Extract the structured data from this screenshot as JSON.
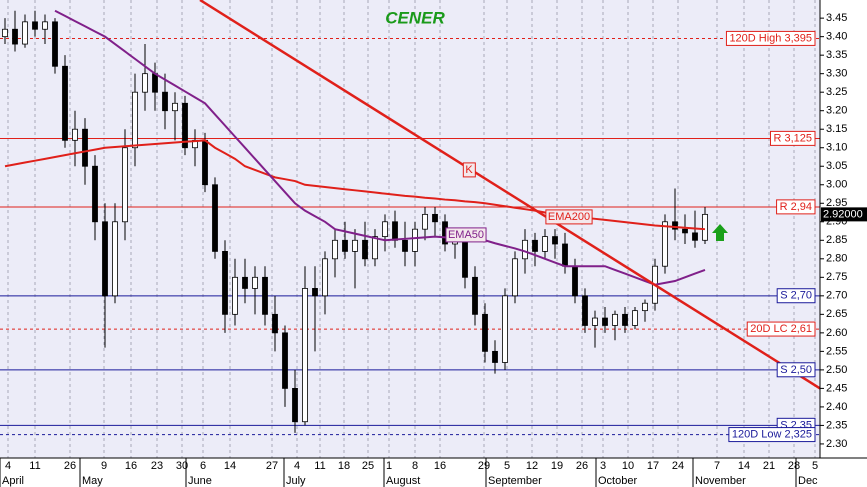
{
  "chart_data": {
    "type": "candlestick",
    "title": "CENER",
    "title_color": "#1a9a1a",
    "ylim": [
      2.262,
      3.499
    ],
    "yticks": [
      {
        "value": 2.3,
        "label": "2.30"
      },
      {
        "value": 2.35,
        "label": "2.35"
      },
      {
        "value": 2.4,
        "label": "2.40"
      },
      {
        "value": 2.45,
        "label": "2.45"
      },
      {
        "value": 2.5,
        "label": "2.50"
      },
      {
        "value": 2.55,
        "label": "2.55"
      },
      {
        "value": 2.6,
        "label": "2.60"
      },
      {
        "value": 2.65,
        "label": "2.65"
      },
      {
        "value": 2.7,
        "label": "2.70"
      },
      {
        "value": 2.75,
        "label": "2.75"
      },
      {
        "value": 2.8,
        "label": "2.80"
      },
      {
        "value": 2.85,
        "label": "2.85"
      },
      {
        "value": 2.9,
        "label": "2.90"
      },
      {
        "value": 2.95,
        "label": "2.95"
      },
      {
        "value": 3,
        "label": "3.00"
      },
      {
        "value": 3.05,
        "label": "3.05"
      },
      {
        "value": 3.1,
        "label": "3.10"
      },
      {
        "value": 3.15,
        "label": "3.15"
      },
      {
        "value": 3.2,
        "label": "3.20"
      },
      {
        "value": 3.25,
        "label": "3.25"
      },
      {
        "value": 3.3,
        "label": "3.30"
      },
      {
        "value": 3.35,
        "label": "3.35"
      },
      {
        "value": 3.4,
        "label": "3.40"
      },
      {
        "value": 3.45,
        "label": "3.45"
      }
    ],
    "xticks": [
      "4",
      "11",
      "26",
      "9",
      "16",
      "23",
      "30",
      "6",
      "14",
      "27",
      "4",
      "11",
      "18",
      "25",
      "1",
      "8",
      "16",
      "29",
      "5",
      "12",
      "19",
      "26",
      "3",
      "10",
      "17",
      "24",
      "7",
      "14",
      "21",
      "28",
      "5"
    ],
    "months": [
      "April",
      "May",
      "June",
      "July",
      "August",
      "September",
      "October",
      "November",
      "Dec"
    ],
    "candles": [
      [
        3.4,
        3.45,
        3.38,
        3.42
      ],
      [
        3.42,
        3.47,
        3.36,
        3.38
      ],
      [
        3.38,
        3.46,
        3.37,
        3.44
      ],
      [
        3.44,
        3.47,
        3.4,
        3.42
      ],
      [
        3.42,
        3.46,
        3.38,
        3.44
      ],
      [
        3.44,
        3.45,
        3.3,
        3.32
      ],
      [
        3.32,
        3.35,
        3.1,
        3.12
      ],
      [
        3.12,
        3.2,
        3.05,
        3.15
      ],
      [
        3.15,
        3.18,
        3.0,
        3.05
      ],
      [
        3.05,
        3.08,
        2.85,
        2.9
      ],
      [
        2.9,
        2.95,
        2.56,
        2.7
      ],
      [
        2.7,
        2.95,
        2.68,
        2.9
      ],
      [
        2.9,
        3.15,
        2.85,
        3.1
      ],
      [
        3.1,
        3.3,
        3.05,
        3.25
      ],
      [
        3.25,
        3.38,
        3.2,
        3.3
      ],
      [
        3.3,
        3.33,
        3.2,
        3.25
      ],
      [
        3.25,
        3.3,
        3.15,
        3.2
      ],
      [
        3.2,
        3.25,
        3.12,
        3.22
      ],
      [
        3.22,
        3.24,
        3.08,
        3.1
      ],
      [
        3.1,
        3.15,
        3.05,
        3.12
      ],
      [
        3.12,
        3.14,
        2.98,
        3.0
      ],
      [
        3.0,
        3.02,
        2.8,
        2.82
      ],
      [
        2.82,
        2.85,
        2.6,
        2.65
      ],
      [
        2.65,
        2.8,
        2.62,
        2.75
      ],
      [
        2.75,
        2.8,
        2.68,
        2.72
      ],
      [
        2.72,
        2.78,
        2.65,
        2.75
      ],
      [
        2.75,
        2.78,
        2.62,
        2.65
      ],
      [
        2.65,
        2.7,
        2.55,
        2.6
      ],
      [
        2.6,
        2.62,
        2.4,
        2.45
      ],
      [
        2.45,
        2.5,
        2.33,
        2.36
      ],
      [
        2.36,
        2.78,
        2.35,
        2.72
      ],
      [
        2.72,
        2.78,
        2.55,
        2.7
      ],
      [
        2.7,
        2.82,
        2.65,
        2.8
      ],
      [
        2.8,
        2.88,
        2.75,
        2.85
      ],
      [
        2.85,
        2.9,
        2.8,
        2.82
      ],
      [
        2.82,
        2.88,
        2.72,
        2.85
      ],
      [
        2.85,
        2.9,
        2.78,
        2.8
      ],
      [
        2.8,
        2.88,
        2.78,
        2.86
      ],
      [
        2.86,
        2.92,
        2.82,
        2.9
      ],
      [
        2.9,
        2.93,
        2.83,
        2.85
      ],
      [
        2.85,
        2.9,
        2.78,
        2.82
      ],
      [
        2.82,
        2.9,
        2.78,
        2.88
      ],
      [
        2.88,
        2.94,
        2.85,
        2.92
      ],
      [
        2.92,
        2.94,
        2.86,
        2.9
      ],
      [
        2.9,
        2.92,
        2.82,
        2.84
      ],
      [
        2.84,
        2.88,
        2.8,
        2.86
      ],
      [
        2.86,
        2.88,
        2.72,
        2.75
      ],
      [
        2.75,
        2.78,
        2.62,
        2.65
      ],
      [
        2.65,
        2.68,
        2.52,
        2.55
      ],
      [
        2.55,
        2.58,
        2.49,
        2.52
      ],
      [
        2.52,
        2.72,
        2.5,
        2.7
      ],
      [
        2.7,
        2.82,
        2.68,
        2.8
      ],
      [
        2.8,
        2.88,
        2.76,
        2.85
      ],
      [
        2.85,
        2.87,
        2.78,
        2.82
      ],
      [
        2.82,
        2.88,
        2.8,
        2.86
      ],
      [
        2.86,
        2.88,
        2.8,
        2.84
      ],
      [
        2.84,
        2.87,
        2.76,
        2.78
      ],
      [
        2.78,
        2.8,
        2.68,
        2.7
      ],
      [
        2.7,
        2.72,
        2.6,
        2.62
      ],
      [
        2.62,
        2.66,
        2.56,
        2.64
      ],
      [
        2.64,
        2.67,
        2.6,
        2.62
      ],
      [
        2.62,
        2.66,
        2.58,
        2.65
      ],
      [
        2.65,
        2.67,
        2.6,
        2.62
      ],
      [
        2.62,
        2.67,
        2.61,
        2.66
      ],
      [
        2.66,
        2.69,
        2.63,
        2.68
      ],
      [
        2.68,
        2.8,
        2.66,
        2.78
      ],
      [
        2.78,
        2.92,
        2.76,
        2.9
      ],
      [
        2.9,
        2.99,
        2.85,
        2.88
      ],
      [
        2.88,
        2.92,
        2.84,
        2.87
      ],
      [
        2.87,
        2.93,
        2.83,
        2.85
      ],
      [
        2.85,
        2.94,
        2.84,
        2.92
      ]
    ],
    "series": [
      {
        "name": "EMA200",
        "color": "#e0201a",
        "values": [
          3.05,
          3.055,
          3.06,
          3.065,
          3.07,
          3.075,
          3.08,
          3.085,
          3.09,
          3.095,
          3.1,
          3.102,
          3.104,
          3.106,
          3.108,
          3.11,
          3.112,
          3.114,
          3.116,
          3.118,
          3.12,
          3.1,
          3.085,
          3.07,
          3.05,
          3.04,
          3.03,
          3.02,
          3.015,
          3.01,
          3.0,
          2.997,
          2.994,
          2.991,
          2.988,
          2.985,
          2.982,
          2.979,
          2.976,
          2.973,
          2.97,
          2.968,
          2.965,
          2.963,
          2.96,
          2.958,
          2.955,
          2.953,
          2.95,
          2.946,
          2.942,
          2.938,
          2.934,
          2.93,
          2.925,
          2.92,
          2.917,
          2.914,
          2.911,
          2.908,
          2.905,
          2.902,
          2.899,
          2.896,
          2.893,
          2.89,
          2.888,
          2.886,
          2.884,
          2.882,
          2.88
        ]
      },
      {
        "name": "EMA50",
        "color": "#80208a",
        "values": [
          null,
          null,
          null,
          null,
          null,
          3.47,
          3.456,
          3.442,
          3.428,
          3.414,
          3.4,
          3.38,
          3.36,
          3.34,
          3.32,
          3.3,
          3.284,
          3.268,
          3.252,
          3.236,
          3.22,
          3.19,
          3.16,
          3.13,
          3.1,
          3.07,
          3.04,
          3.01,
          2.98,
          2.95,
          2.93,
          2.915,
          2.9,
          2.88,
          2.874,
          2.868,
          2.862,
          2.856,
          2.85,
          2.852,
          2.854,
          2.856,
          2.858,
          2.86,
          2.858,
          2.856,
          2.854,
          2.852,
          2.85,
          2.842,
          2.835,
          2.828,
          2.82,
          2.81,
          2.8,
          2.79,
          2.78,
          2.78,
          2.78,
          2.78,
          2.78,
          2.77,
          2.76,
          2.75,
          2.74,
          2.73,
          2.735,
          2.74,
          2.75,
          2.76,
          2.77
        ]
      }
    ],
    "levels": [
      {
        "value": 3.395,
        "label": "120D High 3,395",
        "color": "#e0201a",
        "dashed": true
      },
      {
        "value": 3.125,
        "label": "R 3,125",
        "color": "#e0201a",
        "dashed": false
      },
      {
        "value": 2.94,
        "label": "R 2,94",
        "color": "#e0201a",
        "dashed": false
      },
      {
        "value": 2.7,
        "label": "S 2,70",
        "color": "#1a1a9a",
        "dashed": false
      },
      {
        "value": 2.61,
        "label": "20D LC 2,61",
        "color": "#e0201a",
        "dashed": true
      },
      {
        "value": 2.5,
        "label": "S 2,50",
        "color": "#1a1a9a",
        "dashed": false
      },
      {
        "value": 2.35,
        "label": "S 2,35",
        "color": "#1a1a9a",
        "dashed": false
      },
      {
        "value": 2.325,
        "label": "120D Low 2,325",
        "color": "#1a1a9a",
        "dashed": true
      }
    ],
    "trend_line": {
      "label": "K",
      "color": "#e0201a",
      "values": [
        3.499,
        2.45
      ]
    },
    "last_price": {
      "value": 2.92,
      "label": "2.92000"
    }
  }
}
